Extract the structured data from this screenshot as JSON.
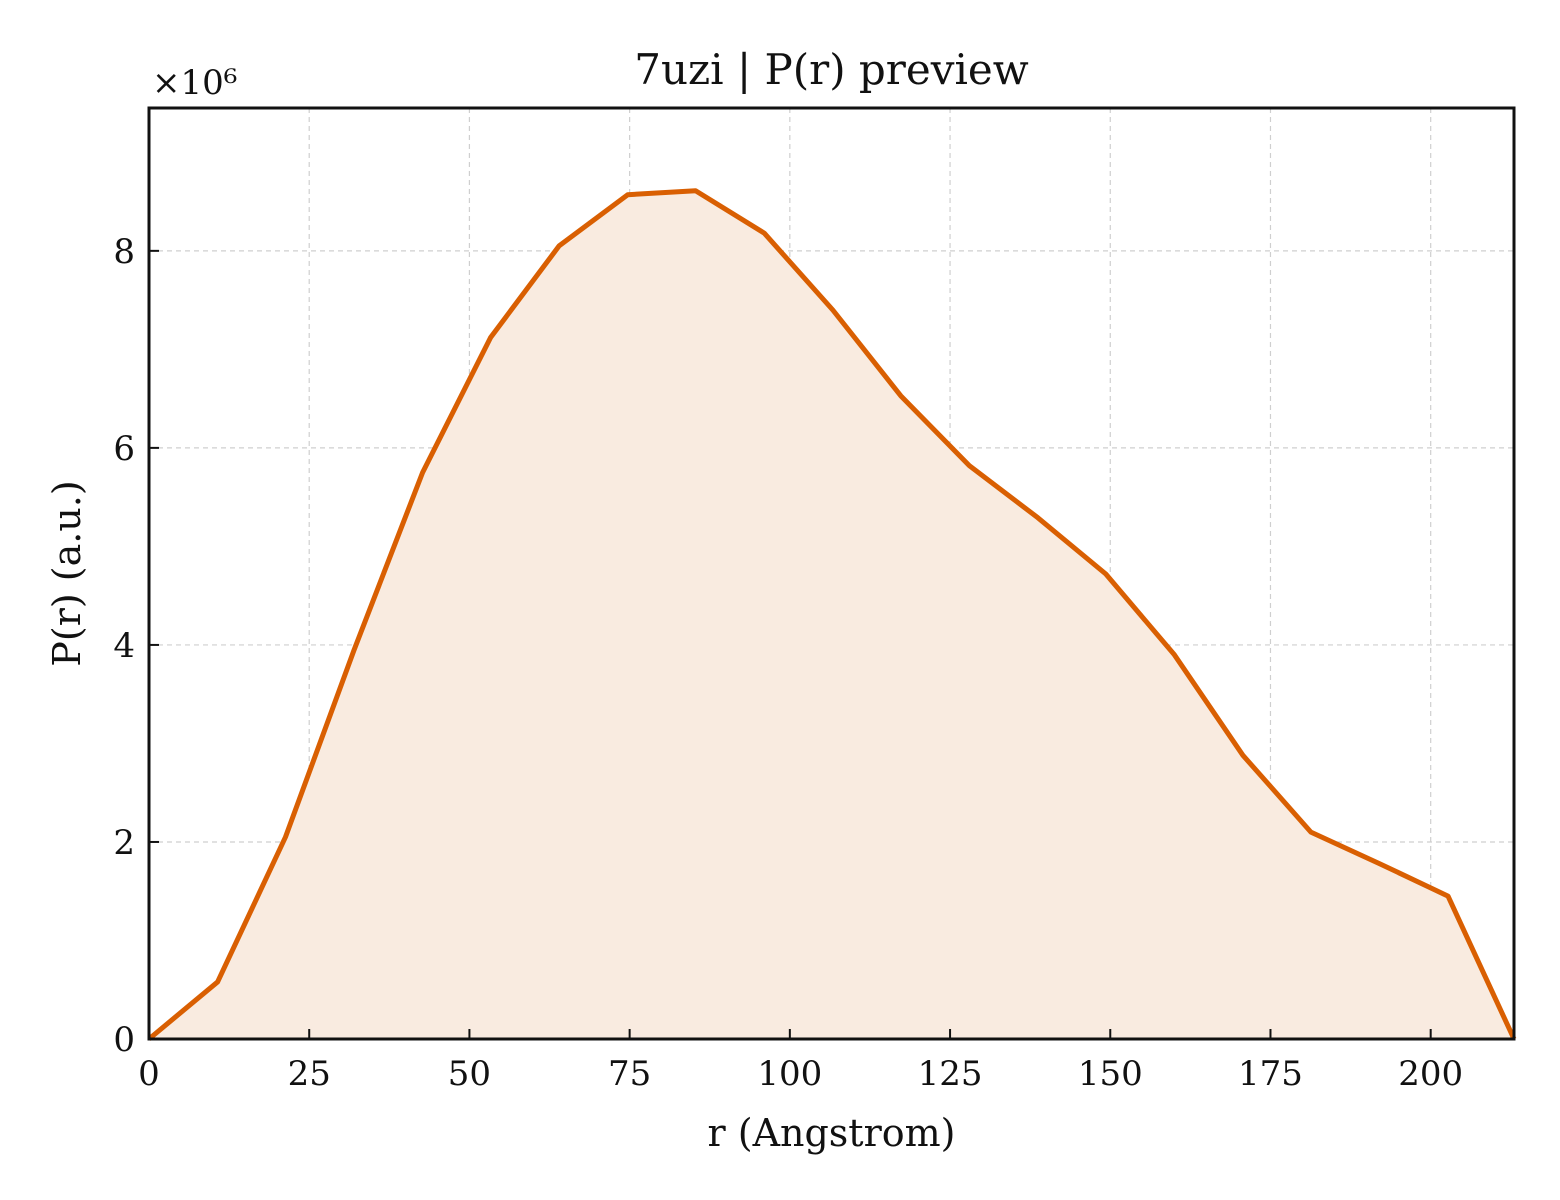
{
  "chart_data": {
    "type": "area",
    "title": "7uzi | P(r) preview",
    "xlabel": "r (Angstrom)",
    "ylabel": "P(r) (a.u.)",
    "y_scale_note": "×10⁶",
    "xlim": [
      0,
      213
    ],
    "ylim": [
      0,
      9.45
    ],
    "x_ticks": [
      0,
      25,
      50,
      75,
      100,
      125,
      150,
      175,
      200
    ],
    "y_ticks": [
      0,
      2,
      4,
      6,
      8
    ],
    "grid": true,
    "series": [
      {
        "color": "#d95f02",
        "fill_color": "#f9ebe0",
        "x": [
          0,
          10.7,
          21.3,
          32.0,
          42.7,
          53.3,
          64.0,
          74.7,
          85.3,
          96.0,
          106.7,
          117.3,
          128.0,
          138.7,
          149.3,
          160.0,
          170.7,
          181.3,
          192.0,
          202.7,
          213.0
        ],
        "y": [
          0,
          0.58,
          2.05,
          3.95,
          5.75,
          7.12,
          8.05,
          8.57,
          8.61,
          8.18,
          7.4,
          6.53,
          5.82,
          5.29,
          4.72,
          3.9,
          2.88,
          2.1,
          1.78,
          1.45,
          0
        ]
      }
    ]
  }
}
